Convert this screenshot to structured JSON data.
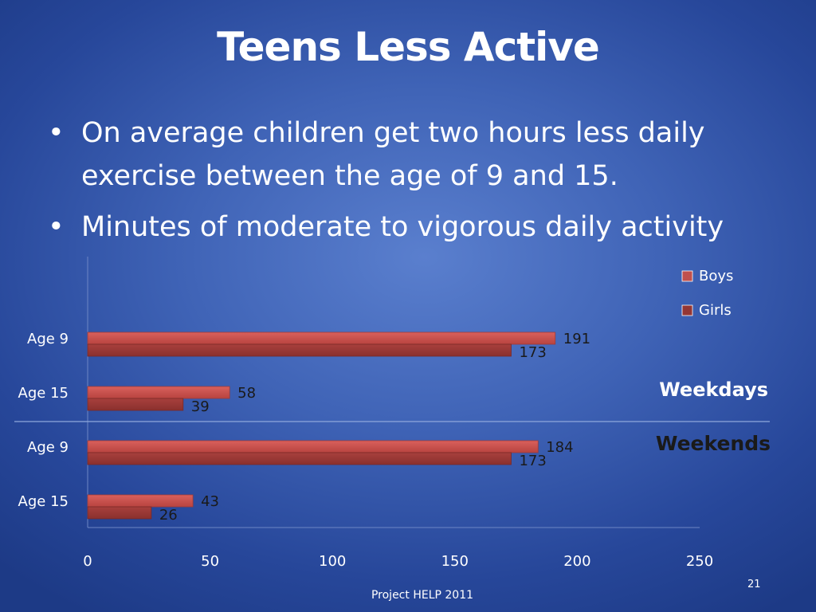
{
  "slide": {
    "title": "Teens Less Active",
    "bullets": [
      "On average children get two hours less daily exercise between the age of 9 and 15.",
      "Minutes of moderate to vigorous daily activity"
    ],
    "footer": "Project HELP  2011",
    "page_number": "21"
  },
  "chart_data": {
    "type": "bar",
    "orientation": "horizontal",
    "categories": [
      "Age 9",
      "Age 15",
      "Age 9",
      "Age 15"
    ],
    "groups": [
      "Weekdays",
      "Weekends"
    ],
    "series": [
      {
        "name": "Boys",
        "values": [
          191,
          58,
          184,
          43
        ],
        "color": "#c0504d"
      },
      {
        "name": "Girls",
        "values": [
          173,
          39,
          173,
          26
        ],
        "color": "#943634"
      }
    ],
    "x_ticks": [
      "0",
      "50",
      "100",
      "150",
      "200",
      "250"
    ],
    "xlim": [
      0,
      250
    ],
    "legend_position": "top-right",
    "grid": false
  }
}
